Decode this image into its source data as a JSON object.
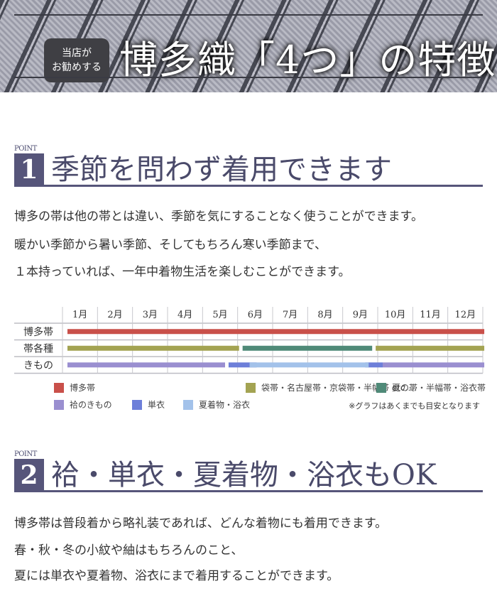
{
  "banner": {
    "badge_line1": "当店が",
    "badge_line2": "お勧めする",
    "title": "博多織「4つ」の特徴"
  },
  "point1": {
    "label": "POINT",
    "number": "1",
    "heading": "季節を問わず着用できます",
    "lines": [
      "博多の帯は他の帯とは違い、季節を気にすることなく使うことができます。",
      "暖かい季節から暑い季節、そしてもちろん寒い季節まで、",
      "１本持っていれば、一年中着物生活を楽しむことができます。"
    ]
  },
  "chart_data": {
    "type": "gantt",
    "categories": [
      "1月",
      "2月",
      "3月",
      "4月",
      "5月",
      "6月",
      "7月",
      "8月",
      "9月",
      "10月",
      "11月",
      "12月"
    ],
    "rows": [
      "博多帯",
      "帯各種",
      "きもの"
    ],
    "series": [
      {
        "name": "博多帯",
        "row": "博多帯",
        "color": "#c9504a",
        "ranges": [
          [
            1,
            12.9
          ]
        ]
      },
      {
        "name": "袋帯・名古屋帯・京袋帯・半幅帯 etc…",
        "row": "帯各種",
        "color": "#a3a352",
        "ranges": [
          [
            1,
            5.9
          ],
          [
            9.8,
            12.9
          ]
        ]
      },
      {
        "name": "夏の帯・半幅帯・浴衣帯",
        "row": "帯各種",
        "color": "#4f8a78",
        "ranges": [
          [
            6,
            9.7
          ]
        ]
      },
      {
        "name": "袷のきもの",
        "row": "きもの",
        "color": "#9a8fd0",
        "ranges": [
          [
            1,
            5.5
          ],
          [
            10,
            12.9
          ]
        ]
      },
      {
        "name": "単衣",
        "row": "きもの",
        "color": "#6d7fd9",
        "ranges": [
          [
            5.6,
            6.4
          ],
          [
            9.5,
            10
          ]
        ]
      },
      {
        "name": "夏着物・浴衣",
        "row": "きもの",
        "color": "#a3c2ea",
        "ranges": [
          [
            6.2,
            9.6
          ]
        ]
      }
    ],
    "legend_order": [
      0,
      1,
      2,
      3,
      4,
      5
    ],
    "legend_placement": "bottom",
    "note": "※グラフはあくまでも目安となります",
    "grid": true
  },
  "point2": {
    "label": "POINT",
    "number": "2",
    "heading": "袷・単衣・夏着物・浴衣もOK",
    "lines": [
      "博多帯は普段着から略礼装であれば、どんな着物にも着用できます。",
      "春・秋・冬の小紋や紬はもちろんのこと、",
      "夏には単衣や夏着物、浴衣にまで着用することができます。"
    ]
  }
}
